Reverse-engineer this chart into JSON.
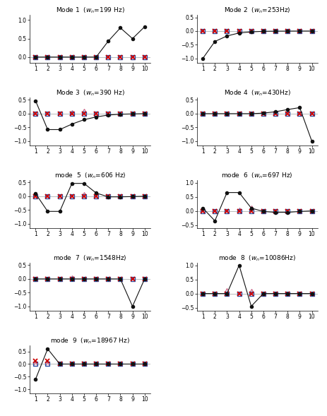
{
  "modes": [
    {
      "title": "Mode 1",
      "freq": "199 Hz",
      "case": "Mode",
      "ylim": [
        -0.15,
        1.15
      ],
      "yticks": [
        0,
        0.5,
        1
      ],
      "black_line": [
        0.0,
        0.0,
        0.0,
        0.0,
        0.0,
        0.0,
        0.43,
        0.79,
        0.5,
        0.82
      ],
      "red_x": [
        0.0,
        0.0,
        0.0,
        0.0,
        0.0,
        0.0,
        0.0,
        0.0,
        0.0,
        0.0
      ],
      "pink_tri": [
        0.0,
        0.0,
        0.0,
        0.0,
        0.0,
        0.0,
        0.0,
        0.0,
        0.0,
        0.0
      ],
      "blue_sq": [
        0.0,
        0.0,
        0.0,
        0.0,
        0.0,
        0.0,
        0.0,
        0.0,
        0.0,
        0.0
      ]
    },
    {
      "title": "Mode 2",
      "freq": "253Hz",
      "case": "Mode",
      "ylim": [
        -1.15,
        0.6
      ],
      "yticks": [
        -1,
        -0.5,
        0,
        0.5
      ],
      "black_line": [
        -1.0,
        -0.38,
        -0.18,
        -0.07,
        -0.03,
        -0.01,
        -0.005,
        -0.002,
        -0.001,
        0.0
      ],
      "red_x": [
        0.0,
        0.0,
        0.0,
        0.0,
        0.0,
        0.0,
        0.0,
        0.0,
        0.0,
        0.0
      ],
      "pink_tri": [
        0.0,
        0.0,
        0.0,
        0.0,
        0.0,
        0.0,
        0.0,
        0.0,
        0.0,
        0.0
      ],
      "blue_sq": [
        0.0,
        0.0,
        0.0,
        0.0,
        0.0,
        0.0,
        0.0,
        0.0,
        0.0,
        0.0
      ]
    },
    {
      "title": "Mode 3",
      "freq": "390 Hz",
      "case": "Mode",
      "ylim": [
        -1.15,
        0.6
      ],
      "yticks": [
        -1,
        -0.5,
        0,
        0.5
      ],
      "black_line": [
        0.47,
        -0.58,
        -0.58,
        -0.38,
        -0.22,
        -0.12,
        -0.05,
        -0.02,
        -0.01,
        0.0
      ],
      "red_x": [
        0.0,
        0.0,
        0.0,
        0.0,
        0.0,
        0.0,
        0.0,
        0.0,
        0.0,
        0.0
      ],
      "pink_tri": [
        0.0,
        0.0,
        0.0,
        0.05,
        0.1,
        0.0,
        0.0,
        0.0,
        0.0,
        0.0
      ],
      "blue_sq": [
        0.0,
        0.0,
        0.0,
        0.0,
        0.0,
        0.0,
        0.0,
        0.0,
        0.0,
        0.0
      ]
    },
    {
      "title": "Mode 4",
      "freq": "430Hz",
      "case": "Mode",
      "ylim": [
        -1.15,
        0.6
      ],
      "yticks": [
        -1,
        -0.5,
        0,
        0.5
      ],
      "black_line": [
        0.0,
        0.0,
        0.0,
        0.0,
        0.0,
        0.02,
        0.07,
        0.15,
        0.22,
        -1.0
      ],
      "red_x": [
        0.0,
        0.0,
        0.0,
        0.0,
        0.0,
        0.0,
        0.0,
        0.0,
        0.0,
        0.0
      ],
      "pink_tri": [
        0.0,
        0.0,
        0.0,
        0.0,
        0.0,
        0.0,
        0.0,
        0.0,
        0.0,
        0.0
      ],
      "blue_sq": [
        0.0,
        0.0,
        0.0,
        0.0,
        0.0,
        0.0,
        0.0,
        0.0,
        0.0,
        0.0
      ]
    },
    {
      "title": "mode  5",
      "freq": "606 Hz",
      "case": "mode",
      "ylim": [
        -1.15,
        0.6
      ],
      "yticks": [
        -1,
        -0.5,
        0,
        0.5
      ],
      "black_line": [
        0.1,
        -0.55,
        -0.55,
        0.47,
        0.47,
        0.12,
        -0.02,
        -0.02,
        -0.01,
        0.0
      ],
      "red_x": [
        0.0,
        0.0,
        0.0,
        0.0,
        0.0,
        0.0,
        0.0,
        0.0,
        0.0,
        0.0
      ],
      "pink_tri": [
        0.0,
        0.0,
        0.0,
        0.0,
        0.08,
        0.0,
        0.0,
        0.0,
        0.0,
        0.0
      ],
      "blue_sq": [
        0.0,
        0.0,
        0.0,
        0.0,
        0.0,
        0.0,
        0.0,
        0.0,
        0.0,
        0.0
      ]
    },
    {
      "title": "mode  6",
      "freq": "697 Hz",
      "case": "mode",
      "ylim": [
        -0.6,
        1.1
      ],
      "yticks": [
        -0.5,
        0,
        0.5,
        1
      ],
      "black_line": [
        0.1,
        -0.35,
        0.65,
        0.65,
        0.1,
        -0.02,
        -0.05,
        -0.05,
        -0.02,
        0.0
      ],
      "red_x": [
        0.0,
        0.0,
        0.0,
        0.0,
        0.0,
        0.0,
        0.0,
        0.0,
        0.0,
        0.0
      ],
      "pink_tri": [
        0.0,
        0.0,
        0.0,
        0.05,
        0.12,
        0.0,
        0.0,
        0.0,
        0.0,
        0.0
      ],
      "blue_sq": [
        0.0,
        0.0,
        0.0,
        0.0,
        0.0,
        0.0,
        0.0,
        0.0,
        0.0,
        0.0
      ]
    },
    {
      "title": "mode  7",
      "freq": "1548Hz",
      "case": "mode",
      "ylim": [
        -1.15,
        0.6
      ],
      "yticks": [
        -1,
        -0.5,
        0,
        0.5
      ],
      "black_line": [
        0.0,
        0.0,
        0.0,
        0.0,
        0.0,
        0.0,
        0.0,
        0.0,
        -1.0,
        0.0
      ],
      "red_x": [
        0.0,
        0.0,
        0.0,
        0.0,
        0.0,
        0.0,
        0.0,
        0.0,
        0.0,
        0.0
      ],
      "pink_tri": [
        0.0,
        0.0,
        0.0,
        0.05,
        0.0,
        0.0,
        0.0,
        0.0,
        0.0,
        0.0
      ],
      "blue_sq": [
        0.0,
        0.0,
        0.0,
        0.0,
        0.0,
        0.0,
        0.0,
        0.0,
        0.0,
        0.0
      ]
    },
    {
      "title": "mode  8",
      "freq": "10086Hz",
      "case": "mode",
      "ylim": [
        -0.6,
        1.1
      ],
      "yticks": [
        -0.5,
        0,
        0.5,
        1
      ],
      "black_line": [
        0.0,
        0.0,
        0.0,
        1.0,
        -0.45,
        0.0,
        0.0,
        0.0,
        0.0,
        0.0
      ],
      "red_x": [
        0.0,
        0.0,
        0.0,
        0.0,
        0.0,
        0.0,
        0.0,
        0.0,
        0.0,
        0.0
      ],
      "pink_tri": [
        0.0,
        0.0,
        0.12,
        0.0,
        0.08,
        0.0,
        0.0,
        0.0,
        0.0,
        0.0
      ],
      "blue_sq": [
        0.0,
        0.0,
        0.0,
        0.0,
        0.0,
        0.0,
        0.0,
        0.0,
        0.0,
        0.0
      ]
    },
    {
      "title": "mode  9",
      "freq": "18967 Hz",
      "case": "mode",
      "ylim": [
        -1.15,
        0.75
      ],
      "yticks": [
        -1,
        -0.5,
        0,
        0.5
      ],
      "black_line": [
        -0.6,
        0.6,
        0.0,
        0.0,
        0.0,
        0.0,
        0.0,
        0.0,
        0.0,
        0.0
      ],
      "red_x": [
        0.12,
        0.12,
        0.0,
        0.0,
        0.0,
        0.0,
        0.0,
        0.0,
        0.0,
        0.0
      ],
      "pink_tri": [
        0.0,
        0.0,
        0.0,
        0.0,
        0.0,
        0.0,
        0.0,
        0.0,
        0.0,
        0.0
      ],
      "blue_sq": [
        0.0,
        0.0,
        0.0,
        0.0,
        0.0,
        0.0,
        0.0,
        0.0,
        0.0,
        0.0
      ]
    }
  ],
  "x": [
    1,
    2,
    3,
    4,
    5,
    6,
    7,
    8,
    9,
    10
  ],
  "color_black": "#111111",
  "color_red": "#cc0000",
  "color_pink": "#cc6688",
  "color_blue": "#2255aa",
  "background_color": "#ffffff",
  "fig_width": 4.64,
  "fig_height": 5.89,
  "dpi": 100
}
